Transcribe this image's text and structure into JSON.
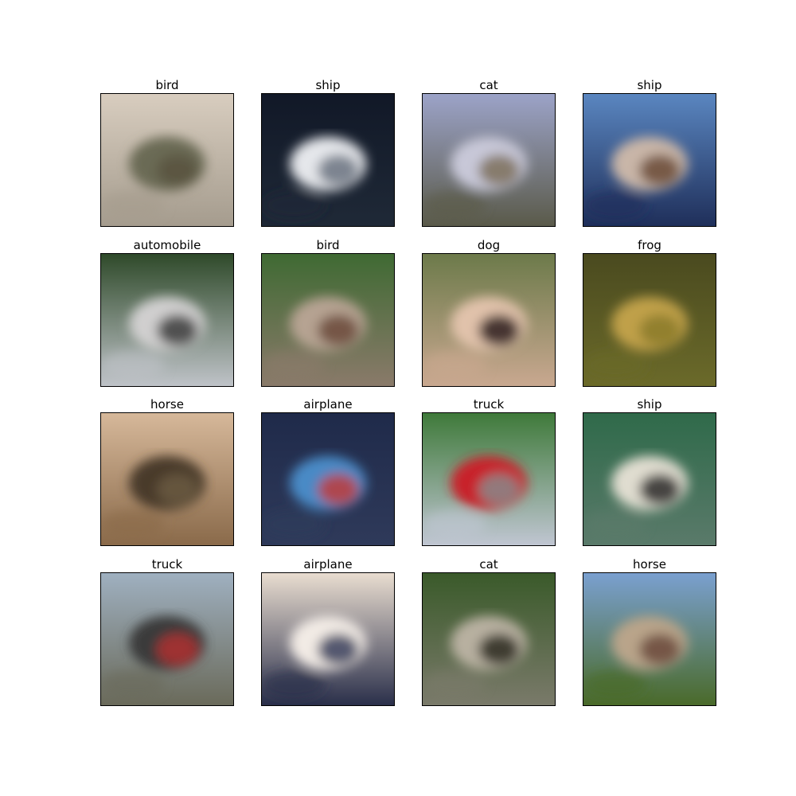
{
  "figure": {
    "rows": 4,
    "cols": 4,
    "images": [
      {
        "label": "bird",
        "palette": [
          "#d8cdbf",
          "#a59c8e",
          "#6b6a55",
          "#59543f"
        ]
      },
      {
        "label": "ship",
        "palette": [
          "#111827",
          "#1f2937",
          "#e5e7eb",
          "#6b7280"
        ]
      },
      {
        "label": "cat",
        "palette": [
          "#9ca3c8",
          "#5a5a4a",
          "#c8c8d8",
          "#7b6f5a"
        ]
      },
      {
        "label": "ship",
        "palette": [
          "#5a86c0",
          "#1f2f5a",
          "#c9b6a8",
          "#6a4a36"
        ]
      },
      {
        "label": "automobile",
        "palette": [
          "#2f4a2a",
          "#bfc3c8",
          "#d0cfcf",
          "#3b3b3b"
        ]
      },
      {
        "label": "bird",
        "palette": [
          "#3f6a33",
          "#8a7a6a",
          "#b6a392",
          "#6b4a3a"
        ]
      },
      {
        "label": "dog",
        "palette": [
          "#6c7a4a",
          "#c9a890",
          "#e1c2ab",
          "#2b1d1a"
        ]
      },
      {
        "label": "frog",
        "palette": [
          "#4a4a1f",
          "#6b6a2a",
          "#c0a04a",
          "#8a7a2a"
        ]
      },
      {
        "label": "horse",
        "palette": [
          "#d6b89a",
          "#8a6a4a",
          "#4a3a2a",
          "#6a5a3f"
        ]
      },
      {
        "label": "airplane",
        "palette": [
          "#1f2a4a",
          "#2f3a5a",
          "#4a8ac6",
          "#c03a3a"
        ]
      },
      {
        "label": "truck",
        "palette": [
          "#3f7a3a",
          "#c0c6d2",
          "#c8202a",
          "#8a8a8a"
        ]
      },
      {
        "label": "ship",
        "palette": [
          "#2f6a4a",
          "#5a7a6a",
          "#e0ddd0",
          "#2a2a2a"
        ]
      },
      {
        "label": "truck",
        "palette": [
          "#9fb0c0",
          "#6a6a5a",
          "#3a3a3a",
          "#b03030"
        ]
      },
      {
        "label": "airplane",
        "palette": [
          "#e9ddd0",
          "#2a2f4a",
          "#f2ebe5",
          "#3a3f5a"
        ]
      },
      {
        "label": "cat",
        "palette": [
          "#3a5a2a",
          "#7a7a6a",
          "#b8b0a0",
          "#2a2a1f"
        ]
      },
      {
        "label": "horse",
        "palette": [
          "#7aa0d0",
          "#4a6a2a",
          "#b9a48a",
          "#6a4a3a"
        ]
      }
    ]
  }
}
